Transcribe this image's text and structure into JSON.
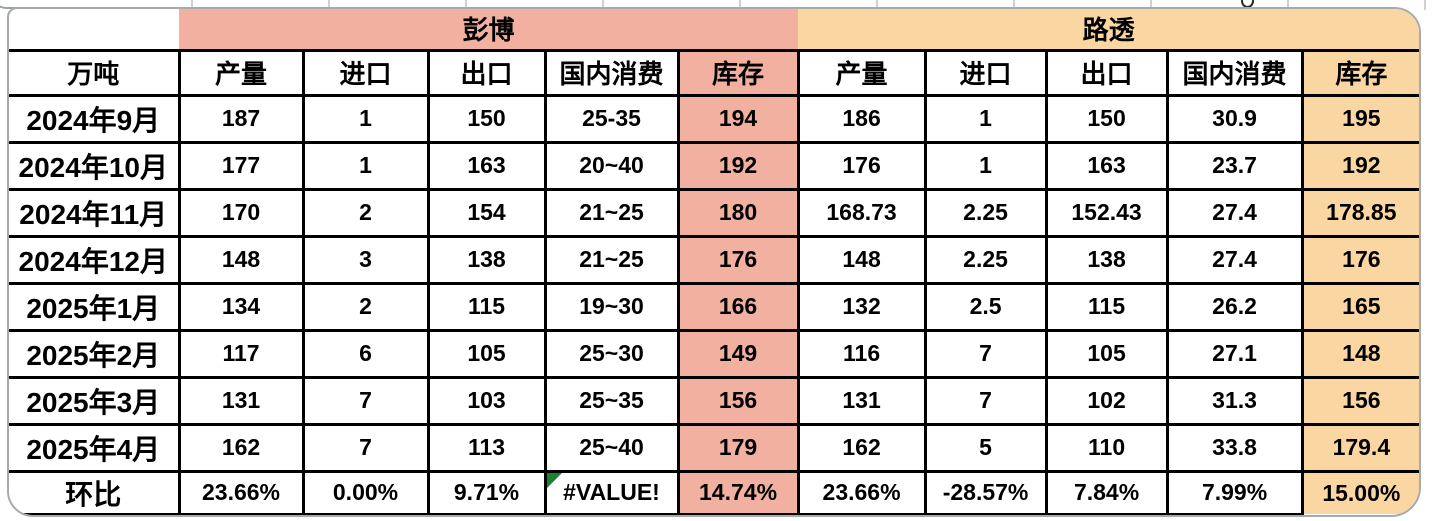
{
  "table": {
    "unit": "万吨",
    "groups": [
      {
        "name": "彭博",
        "accent_color": "#f2b1a0",
        "columns": [
          "产量",
          "进口",
          "出口",
          "国内消费",
          "库存"
        ]
      },
      {
        "name": "路透",
        "accent_color": "#fad6a2",
        "columns": [
          "产量",
          "进口",
          "出口",
          "国内消费",
          "库存"
        ]
      }
    ],
    "rows": [
      {
        "label": "2024年9月",
        "bloomberg": [
          "187",
          "1",
          "150",
          "25-35",
          "194"
        ],
        "reuters": [
          "186",
          "1",
          "150",
          "30.9",
          "195"
        ]
      },
      {
        "label": "2024年10月",
        "bloomberg": [
          "177",
          "1",
          "163",
          "20~40",
          "192"
        ],
        "reuters": [
          "176",
          "1",
          "163",
          "23.7",
          "192"
        ]
      },
      {
        "label": "2024年11月",
        "bloomberg": [
          "170",
          "2",
          "154",
          "21~25",
          "180"
        ],
        "reuters": [
          "168.73",
          "2.25",
          "152.43",
          "27.4",
          "178.85"
        ]
      },
      {
        "label": "2024年12月",
        "bloomberg": [
          "148",
          "3",
          "138",
          "21~25",
          "176"
        ],
        "reuters": [
          "148",
          "2.25",
          "138",
          "27.4",
          "176"
        ]
      },
      {
        "label": "2025年1月",
        "bloomberg": [
          "134",
          "2",
          "115",
          "19~30",
          "166"
        ],
        "reuters": [
          "132",
          "2.5",
          "115",
          "26.2",
          "165"
        ]
      },
      {
        "label": "2025年2月",
        "bloomberg": [
          "117",
          "6",
          "105",
          "25~30",
          "149"
        ],
        "reuters": [
          "116",
          "7",
          "105",
          "27.1",
          "148"
        ]
      },
      {
        "label": "2025年3月",
        "bloomberg": [
          "131",
          "7",
          "103",
          "25~35",
          "156"
        ],
        "reuters": [
          "131",
          "7",
          "102",
          "31.3",
          "156"
        ]
      },
      {
        "label": "2025年4月",
        "bloomberg": [
          "162",
          "7",
          "113",
          "25~40",
          "179"
        ],
        "reuters": [
          "162",
          "5",
          "110",
          "33.8",
          "179.4"
        ]
      }
    ],
    "footer": {
      "label": "环比",
      "bloomberg": [
        "23.66%",
        "0.00%",
        "9.71%",
        "#VALUE!",
        "14.74%"
      ],
      "reuters": [
        "23.66%",
        "-28.57%",
        "7.84%",
        "7.99%",
        "15.00%"
      ],
      "error_value": "#VALUE!",
      "error_indicator_color": "#1e8033"
    }
  }
}
